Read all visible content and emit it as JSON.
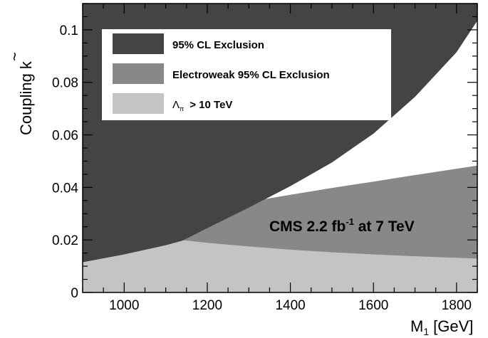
{
  "chart_data": {
    "type": "area",
    "xlabel": "M",
    "xlabel_sub": "1",
    "xlabel_unit": "[GeV]",
    "ylabel": "Coupling",
    "ylabel_symbol": "k",
    "ylabel_accent": "~",
    "xlim": [
      900,
      1850
    ],
    "ylim": [
      0,
      0.11
    ],
    "x_ticks": [
      1000,
      1200,
      1400,
      1600,
      1800
    ],
    "x_tick_labels": [
      "1000",
      "1200",
      "1400",
      "1600",
      "1800"
    ],
    "y_ticks": [
      0,
      0.02,
      0.04,
      0.06,
      0.08,
      0.1
    ],
    "y_tick_labels": [
      "0",
      "0.02",
      "0.04",
      "0.06",
      "0.08",
      "0.1"
    ],
    "grid": false,
    "legend_position": "top-left",
    "series": [
      {
        "name": "95% CL Exclusion",
        "color": "#444444",
        "boundary": {
          "x": [
            900,
            1000,
            1100,
            1140,
            1200,
            1300,
            1400,
            1500,
            1600,
            1700,
            1800,
            1850
          ],
          "y": [
            0.0115,
            0.0145,
            0.018,
            0.0197,
            0.0245,
            0.0323,
            0.0405,
            0.0495,
            0.0605,
            0.0745,
            0.0915,
            0.1035
          ]
        }
      },
      {
        "name": "Electroweak 95% CL Exclusion",
        "color": "#888888",
        "boundary": {
          "x": [
            900,
            950,
            1000,
            1100,
            1200,
            1300,
            1400,
            1500,
            1600,
            1700,
            1800,
            1850
          ],
          "y": [
            0.0255,
            0.0248,
            0.0262,
            0.029,
            0.0318,
            0.0345,
            0.0372,
            0.0398,
            0.0422,
            0.0447,
            0.0471,
            0.0483
          ]
        }
      },
      {
        "name_symbol": "Λ",
        "name_sub": "π",
        "name": "> 10 TeV",
        "color": "#c4c4c4",
        "boundary": {
          "x": [
            900,
            1000,
            1100,
            1200,
            1300,
            1400,
            1500,
            1600,
            1700,
            1800,
            1850
          ],
          "y": [
            0.0255,
            0.0228,
            0.0206,
            0.0189,
            0.0175,
            0.0163,
            0.0153,
            0.0145,
            0.0138,
            0.0132,
            0.0129
          ]
        }
      }
    ],
    "annotation": {
      "prefix": "CMS 2.2 fb",
      "superscript": "-1",
      "suffix": " at 7 TeV"
    }
  }
}
